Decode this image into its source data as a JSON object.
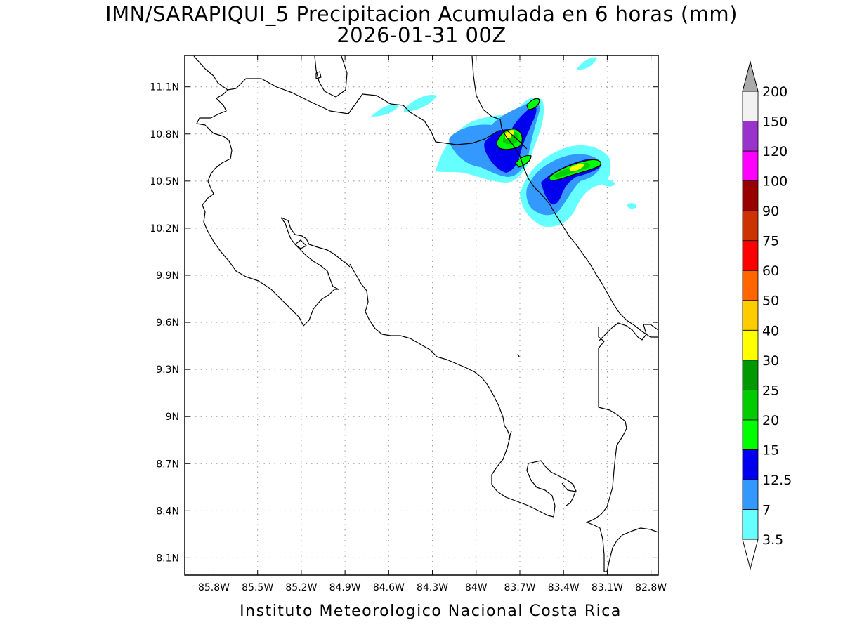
{
  "title": {
    "line1": "IMN/SARAPIQUI_5 Precipitacion Acumulada en 6 horas (mm)",
    "line2": "2026-01-31 00Z"
  },
  "footer": "Instituto Meteorologico Nacional Costa Rica",
  "axes": {
    "lon_labels": [
      "85.8W",
      "85.5W",
      "85.2W",
      "84.9W",
      "84.6W",
      "84.3W",
      "84W",
      "83.7W",
      "83.4W",
      "83.1W",
      "82.8W"
    ],
    "lat_labels": [
      "11.1N",
      "10.8N",
      "10.5N",
      "10.2N",
      "9.9N",
      "9.6N",
      "9.3N",
      "9N",
      "8.7N",
      "8.4N",
      "8.1N"
    ],
    "lon_values": [
      -85.8,
      -85.5,
      -85.2,
      -84.9,
      -84.6,
      -84.3,
      -84.0,
      -83.7,
      -83.4,
      -83.1,
      -82.8
    ],
    "lat_values": [
      11.1,
      10.8,
      10.5,
      10.2,
      9.9,
      9.6,
      9.3,
      9.0,
      8.7,
      8.4,
      8.1
    ],
    "lon_range": [
      -86.0,
      -82.75
    ],
    "lat_range": [
      7.99,
      11.3
    ],
    "grid": true
  },
  "legend": {
    "labels": [
      "3.5",
      "7",
      "12.5",
      "15",
      "20",
      "25",
      "30",
      "40",
      "50",
      "60",
      "75",
      "90",
      "100",
      "120",
      "150",
      "200"
    ],
    "colors": [
      "#66ffff",
      "#3399ff",
      "#0000ee",
      "#00ff00",
      "#00cc00",
      "#009900",
      "#ffff00",
      "#ffcc00",
      "#ff6600",
      "#ff0000",
      "#cc3300",
      "#990000",
      "#ff00ff",
      "#9933cc",
      "#f2f2f2",
      "#aaaaaa"
    ],
    "placement": "right"
  },
  "colors": {
    "coastline": "#000000",
    "grid": "#9a9a9a"
  }
}
